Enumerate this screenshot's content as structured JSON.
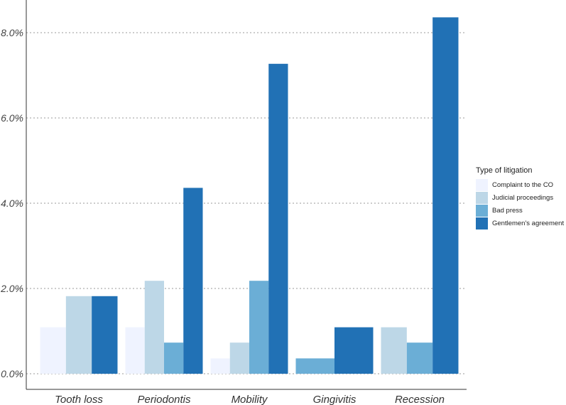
{
  "chart_data": {
    "type": "bar",
    "categories": [
      "Tooth loss",
      "Periodontis",
      "Mobility",
      "Gingivitis",
      "Recession"
    ],
    "ylim": [
      0,
      8.6
    ],
    "yticks": [
      {
        "value": 0,
        "label": "0.0%"
      },
      {
        "value": 2,
        "label": "2.0%"
      },
      {
        "value": 4,
        "label": "4.0%"
      },
      {
        "value": 6,
        "label": "6.0%"
      },
      {
        "value": 8,
        "label": "8.0%"
      }
    ],
    "grid": "horizontal dotted",
    "legend_title": "Type of litigation",
    "legend_position": "right",
    "series": [
      {
        "name": "Complaint to the CO",
        "color": "#eff3ff",
        "values": [
          1.09,
          1.09,
          0.36,
          null,
          null
        ]
      },
      {
        "name": "Judicial proceedings",
        "color": "#bdd7e7",
        "values": [
          1.82,
          2.18,
          0.73,
          null,
          1.09
        ]
      },
      {
        "name": "Bad press",
        "color": "#6baed6",
        "values": [
          null,
          0.73,
          2.18,
          0.36,
          0.73
        ]
      },
      {
        "name": "Gentlemen's agreement",
        "color": "#2171b5",
        "values": [
          1.82,
          4.36,
          7.27,
          1.09,
          8.36
        ]
      }
    ]
  }
}
